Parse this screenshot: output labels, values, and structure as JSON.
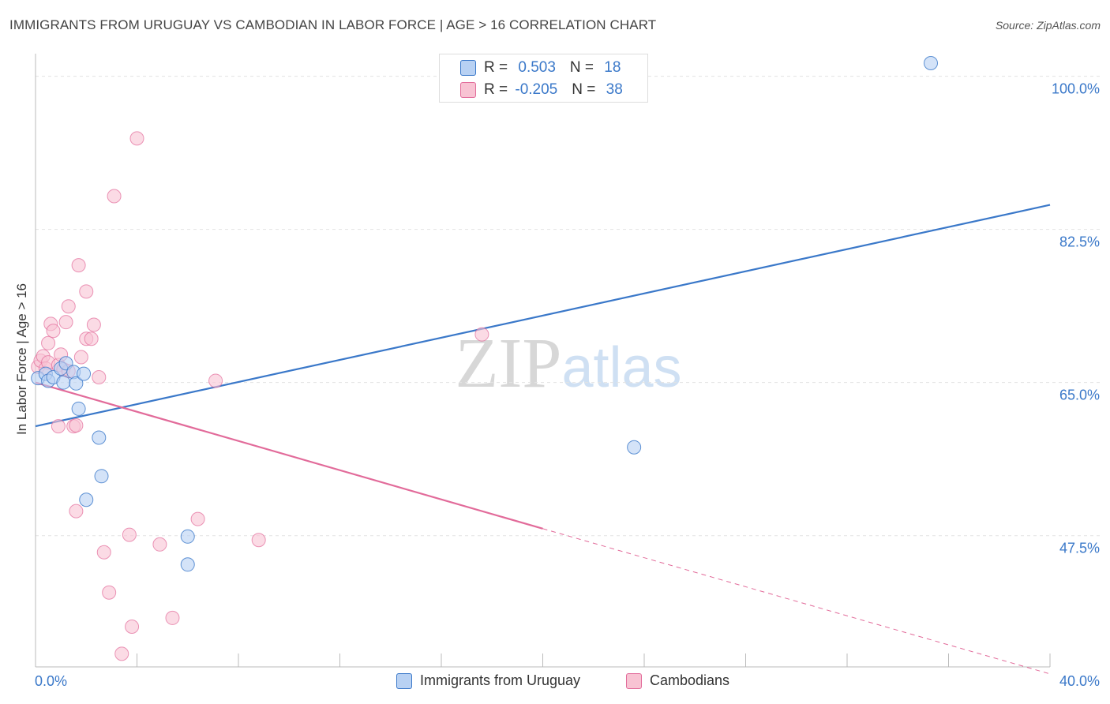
{
  "title": "IMMIGRANTS FROM URUGUAY VS CAMBODIAN IN LABOR FORCE | AGE > 16 CORRELATION CHART",
  "source": "Source: ZipAtlas.com",
  "watermark": "ZIPatlas",
  "colors": {
    "blue": "#3a78c9",
    "blue_fill": "#b8d1f3",
    "pink": "#e26b9a",
    "pink_fill": "#f8c3d3",
    "tick_text": "#3a78c9",
    "grid": "#e3e3e3"
  },
  "stats": {
    "rows": [
      {
        "r_label": "R = ",
        "r_value": " 0.503",
        "n_label": "N = ",
        "n_value": "18"
      },
      {
        "r_label": "R = ",
        "r_value": "-0.205",
        "n_label": "N = ",
        "n_value": "38"
      }
    ]
  },
  "chart_data": {
    "type": "scatter",
    "title": "IMMIGRANTS FROM URUGUAY VS CAMBODIAN IN LABOR FORCE | AGE > 16 CORRELATION CHART",
    "xlabel": "",
    "ylabel": "In Labor Force | Age > 16",
    "xlim": [
      0,
      40
    ],
    "ylim": [
      32.5,
      101.5
    ],
    "x_tick_labels": [
      "0.0%",
      "40.0%"
    ],
    "y_ticks": [
      47.5,
      65.0,
      82.5,
      100.0
    ],
    "y_tick_labels": [
      "47.5%",
      "65.0%",
      "82.5%",
      "100.0%"
    ],
    "grid": true,
    "legend_position": "bottom",
    "series": [
      {
        "name": "Immigrants from Uruguay",
        "color": "#3a78c9",
        "points": [
          [
            0.1,
            65.5
          ],
          [
            0.4,
            66.0
          ],
          [
            0.5,
            65.2
          ],
          [
            0.7,
            65.6
          ],
          [
            1.0,
            66.6
          ],
          [
            1.1,
            65.0
          ],
          [
            1.2,
            67.2
          ],
          [
            1.5,
            66.2
          ],
          [
            1.6,
            64.9
          ],
          [
            1.7,
            62.0
          ],
          [
            1.9,
            66.0
          ],
          [
            2.5,
            58.7
          ],
          [
            2.6,
            54.3
          ],
          [
            2.0,
            51.6
          ],
          [
            6.0,
            47.4
          ],
          [
            6.0,
            44.2
          ],
          [
            23.6,
            57.6
          ],
          [
            35.3,
            101.5
          ]
        ],
        "trend": {
          "x": [
            0,
            40
          ],
          "y": [
            60.0,
            85.3
          ]
        }
      },
      {
        "name": "Cambodians",
        "color": "#e26b9a",
        "points": [
          [
            0.1,
            66.8
          ],
          [
            0.2,
            67.5
          ],
          [
            0.3,
            68.0
          ],
          [
            0.4,
            66.6
          ],
          [
            0.5,
            67.3
          ],
          [
            0.5,
            69.5
          ],
          [
            0.6,
            71.7
          ],
          [
            0.7,
            70.9
          ],
          [
            0.9,
            67.0
          ],
          [
            0.9,
            60.0
          ],
          [
            1.0,
            68.2
          ],
          [
            1.1,
            66.5
          ],
          [
            1.2,
            71.9
          ],
          [
            1.3,
            73.7
          ],
          [
            1.5,
            60.0
          ],
          [
            1.6,
            50.3
          ],
          [
            1.6,
            60.1
          ],
          [
            1.7,
            78.4
          ],
          [
            1.8,
            67.9
          ],
          [
            2.0,
            70.0
          ],
          [
            2.0,
            75.4
          ],
          [
            2.2,
            70.0
          ],
          [
            2.3,
            71.6
          ],
          [
            2.5,
            65.6
          ],
          [
            2.7,
            45.6
          ],
          [
            2.9,
            41.0
          ],
          [
            3.1,
            86.3
          ],
          [
            3.4,
            34.0
          ],
          [
            3.7,
            47.6
          ],
          [
            3.8,
            37.1
          ],
          [
            4.0,
            92.9
          ],
          [
            4.9,
            46.5
          ],
          [
            5.4,
            38.1
          ],
          [
            6.4,
            49.4
          ],
          [
            7.1,
            65.2
          ],
          [
            8.8,
            47.0
          ],
          [
            17.6,
            70.5
          ],
          [
            1.3,
            66.3
          ]
        ],
        "trend": {
          "x": [
            0,
            20
          ],
          "y": [
            65.0,
            48.3
          ]
        },
        "trend_extension": {
          "x": [
            20,
            40
          ],
          "y": [
            48.3,
            31.7
          ]
        }
      }
    ]
  }
}
